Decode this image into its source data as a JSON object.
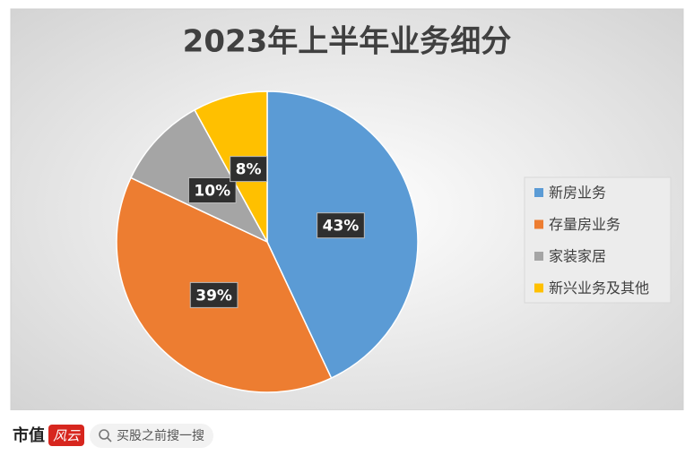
{
  "chart_data": {
    "type": "pie",
    "title": "2023年上半年业务细分",
    "categories": [
      "新房业务",
      "存量房业务",
      "家装家居",
      "新兴业务及其他"
    ],
    "values": [
      43,
      39,
      10,
      8
    ],
    "value_labels": [
      "43%",
      "39%",
      "10%",
      "8%"
    ],
    "colors": [
      "#5b9bd5",
      "#ed7d31",
      "#a5a5a5",
      "#ffc000"
    ],
    "legend": "right"
  },
  "footer": {
    "brand": "市值",
    "logo": "风云",
    "search": "买股之前搜一搜"
  }
}
